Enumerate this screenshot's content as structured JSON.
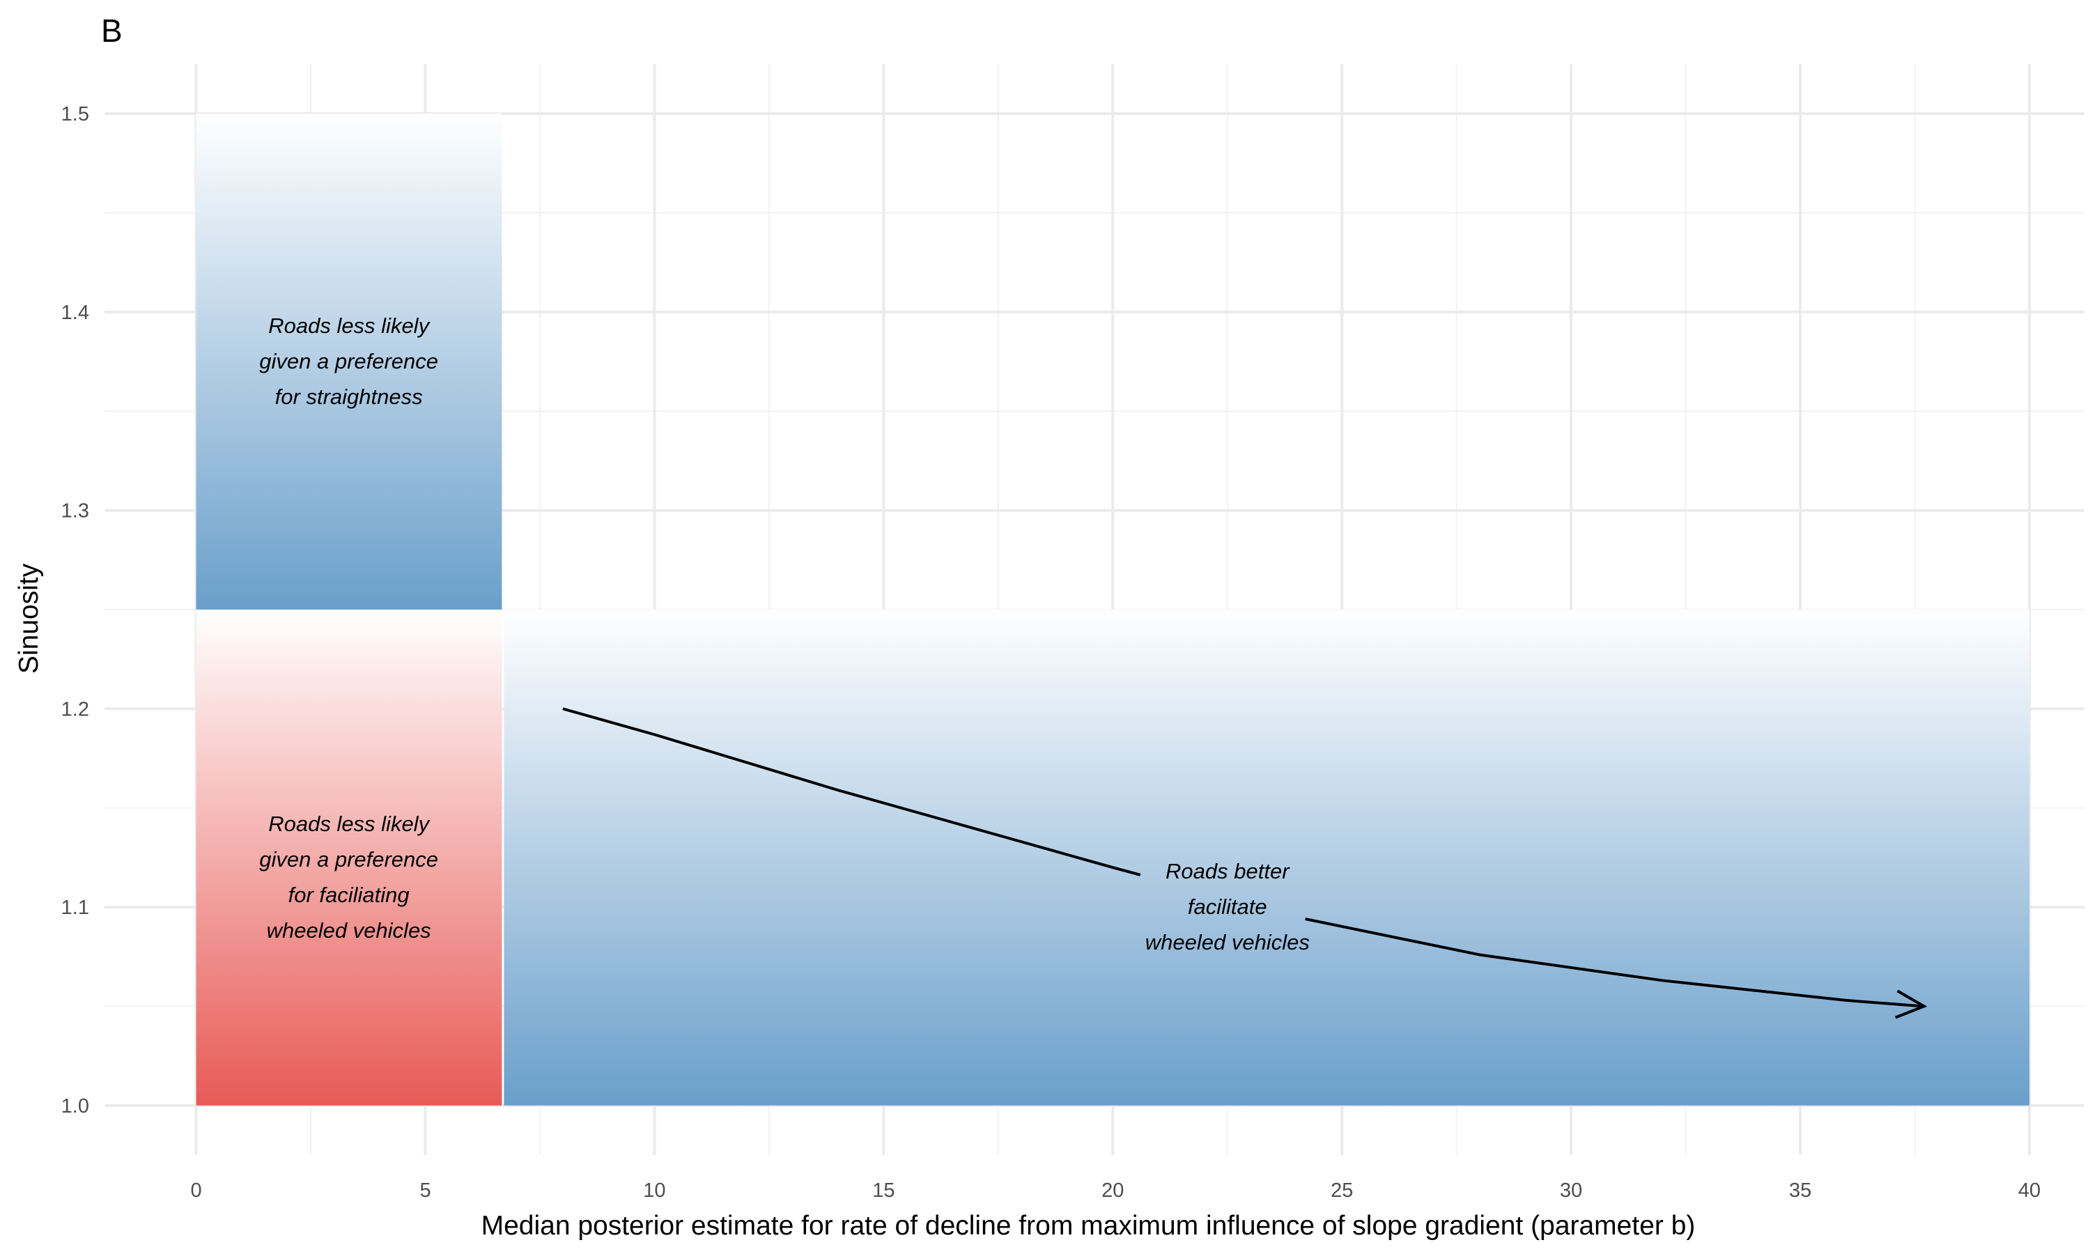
{
  "panel_label": "B",
  "chart_data": {
    "type": "area",
    "title": "",
    "xlabel": "Median posterior estimate for rate of decline from maximum influence of slope gradient (parameter b)",
    "ylabel": "Sinuosity",
    "xlim": [
      -2,
      41.2
    ],
    "ylim": [
      0.975,
      1.525
    ],
    "x_ticks": [
      0,
      5,
      10,
      15,
      20,
      25,
      30,
      35,
      40
    ],
    "y_ticks": [
      1.0,
      1.1,
      1.2,
      1.3,
      1.4,
      1.5
    ],
    "grid": true,
    "legend": "none",
    "regions": [
      {
        "x": [
          0,
          6.67
        ],
        "y": [
          1.25,
          1.5
        ],
        "color_bottom": "#6a9fcb",
        "color_top": "#ffffff",
        "label": [
          "Roads less likely",
          "given a preference",
          "for straightness"
        ],
        "label_at": [
          3.33,
          1.375
        ]
      },
      {
        "x": [
          0,
          6.67
        ],
        "y": [
          1.0,
          1.25
        ],
        "color_bottom": "#e85a56",
        "color_top": "#ffffff",
        "label": [
          "Roads less likely",
          "given a preference",
          "for faciliating",
          "wheeled vehicles"
        ],
        "label_at": [
          3.33,
          1.115
        ]
      },
      {
        "x": [
          6.67,
          40
        ],
        "y": [
          1.0,
          1.25
        ],
        "color_bottom": "#6a9fcb",
        "color_top": "#ffffff",
        "label": [],
        "label_at": [
          23.3,
          1.125
        ]
      }
    ],
    "curve": {
      "x": [
        8,
        10,
        12,
        14,
        16,
        18,
        20,
        24,
        28,
        32,
        36,
        37.7
      ],
      "y": [
        1.2,
        1.187,
        1.173,
        1.159,
        1.146,
        1.133,
        1.12,
        1.095,
        1.076,
        1.063,
        1.053,
        1.05
      ],
      "arrow": "end",
      "gap_x": [
        20.6,
        24.2
      ],
      "color": "#000000"
    },
    "annotations": [
      {
        "lines": [
          "Roads better",
          "facilitate",
          "wheeled vehicles"
        ],
        "x": 22.5,
        "y": 1.1
      }
    ]
  }
}
